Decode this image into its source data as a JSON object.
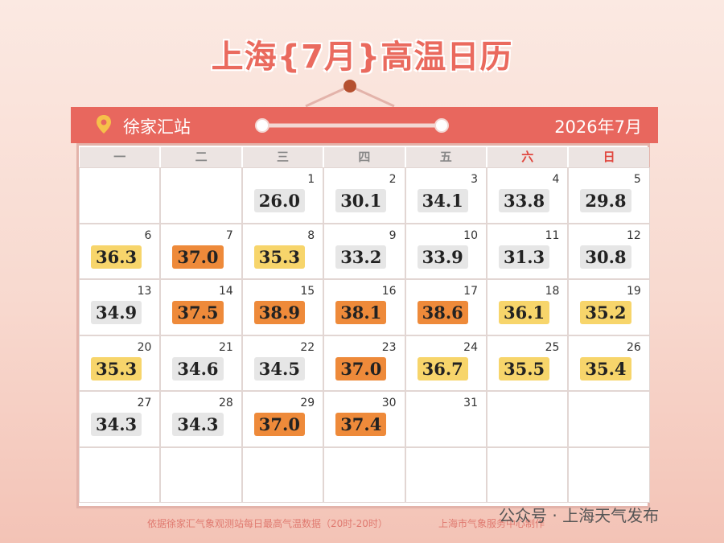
{
  "header": {
    "title": "上海{7月}高温日历",
    "station": "徐家汇站",
    "month": "2026年7月"
  },
  "calendar": {
    "weekdays": [
      {
        "label": "一",
        "color": "#888888"
      },
      {
        "label": "二",
        "color": "#888888"
      },
      {
        "label": "三",
        "color": "#888888"
      },
      {
        "label": "四",
        "color": "#888888"
      },
      {
        "label": "五",
        "color": "#888888"
      },
      {
        "label": "六",
        "color": "#e0473f"
      },
      {
        "label": "日",
        "color": "#e0473f"
      }
    ],
    "weeks": [
      [
        null,
        null,
        {
          "day": 1,
          "temp": "26.0",
          "color": "#e6e6e6"
        },
        {
          "day": 2,
          "temp": "30.1",
          "color": "#e6e6e6"
        },
        {
          "day": 3,
          "temp": "34.1",
          "color": "#e6e6e6"
        },
        {
          "day": 4,
          "temp": "33.8",
          "color": "#e6e6e6"
        },
        {
          "day": 5,
          "temp": "29.8",
          "color": "#e6e6e6"
        }
      ],
      [
        {
          "day": 6,
          "temp": "36.3",
          "color": "#f7d56b"
        },
        {
          "day": 7,
          "temp": "37.0",
          "color": "#ee8a3a"
        },
        {
          "day": 8,
          "temp": "35.3",
          "color": "#f7d56b"
        },
        {
          "day": 9,
          "temp": "33.2",
          "color": "#e6e6e6"
        },
        {
          "day": 10,
          "temp": "33.9",
          "color": "#e6e6e6"
        },
        {
          "day": 11,
          "temp": "31.3",
          "color": "#e6e6e6"
        },
        {
          "day": 12,
          "temp": "30.8",
          "color": "#e6e6e6"
        }
      ],
      [
        {
          "day": 13,
          "temp": "34.9",
          "color": "#e6e6e6"
        },
        {
          "day": 14,
          "temp": "37.5",
          "color": "#ee8a3a"
        },
        {
          "day": 15,
          "temp": "38.9",
          "color": "#ee8a3a"
        },
        {
          "day": 16,
          "temp": "38.1",
          "color": "#ee8a3a"
        },
        {
          "day": 17,
          "temp": "38.6",
          "color": "#ee8a3a"
        },
        {
          "day": 18,
          "temp": "36.1",
          "color": "#f7d56b"
        },
        {
          "day": 19,
          "temp": "35.2",
          "color": "#f7d56b"
        }
      ],
      [
        {
          "day": 20,
          "temp": "35.3",
          "color": "#f7d56b"
        },
        {
          "day": 21,
          "temp": "34.6",
          "color": "#e6e6e6"
        },
        {
          "day": 22,
          "temp": "34.5",
          "color": "#e6e6e6"
        },
        {
          "day": 23,
          "temp": "37.0",
          "color": "#ee8a3a"
        },
        {
          "day": 24,
          "temp": "36.7",
          "color": "#f7d56b"
        },
        {
          "day": 25,
          "temp": "35.5",
          "color": "#f7d56b"
        },
        {
          "day": 26,
          "temp": "35.4",
          "color": "#f7d56b"
        }
      ],
      [
        {
          "day": 27,
          "temp": "34.3",
          "color": "#e6e6e6"
        },
        {
          "day": 28,
          "temp": "34.3",
          "color": "#e6e6e6"
        },
        {
          "day": 29,
          "temp": "37.0",
          "color": "#ee8a3a"
        },
        {
          "day": 30,
          "temp": "37.4",
          "color": "#ee8a3a"
        },
        {
          "day": 31
        },
        null,
        null
      ],
      [
        null,
        null,
        null,
        null,
        null,
        null,
        null
      ]
    ]
  },
  "footer": {
    "source": "依据徐家汇气象观测站每日最高气温数据（20时-20时）",
    "credit": "上海市气象服务中心制作",
    "watermark": "公众号 · 上海天气发布"
  }
}
